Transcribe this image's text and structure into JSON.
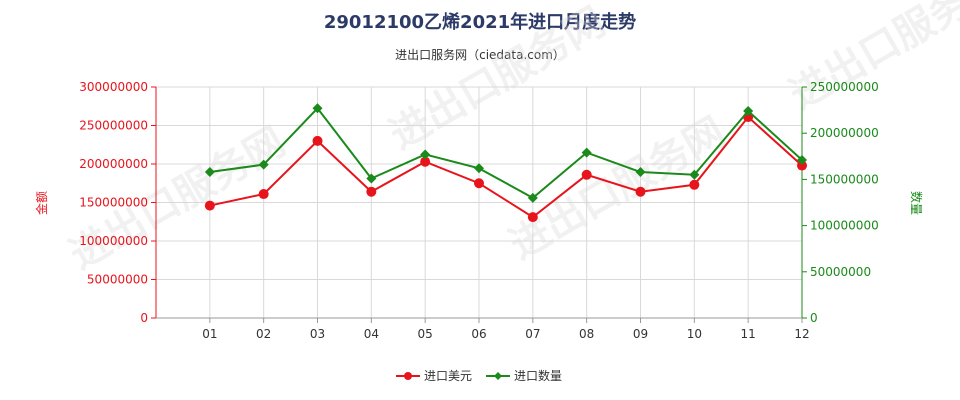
{
  "title": "29012100乙烯2021年进口月度走势",
  "subtitle": "进出口服务网（ciedata.com）",
  "watermark": "进出口服务网",
  "colors": {
    "usd": "#e8141c",
    "qty": "#1a8a1a",
    "grid": "#d9d9d9"
  },
  "chart_data": {
    "type": "line",
    "categories": [
      "01",
      "02",
      "03",
      "04",
      "05",
      "06",
      "07",
      "08",
      "09",
      "10",
      "11",
      "12"
    ],
    "series": [
      {
        "name": "进口美元",
        "axis": "left",
        "values": [
          146000000,
          161000000,
          230000000,
          164000000,
          203000000,
          175000000,
          131000000,
          186000000,
          164000000,
          173000000,
          261000000,
          198000000
        ]
      },
      {
        "name": "进口数量",
        "axis": "right",
        "values": [
          158000000,
          166000000,
          227000000,
          151000000,
          177000000,
          162000000,
          130000000,
          179000000,
          158000000,
          155000000,
          224000000,
          171000000
        ]
      }
    ],
    "left_axis": {
      "label": "金额",
      "range": [
        0,
        300000000
      ],
      "ticks": [
        "0",
        "50000000",
        "100000000",
        "150000000",
        "200000000",
        "250000000",
        "300000000"
      ]
    },
    "right_axis": {
      "label": "数量",
      "range": [
        0,
        250000000
      ],
      "ticks": [
        "0",
        "50000000",
        "100000000",
        "150000000",
        "200000000",
        "250000000"
      ]
    },
    "grid": true,
    "legend_position": "bottom"
  }
}
